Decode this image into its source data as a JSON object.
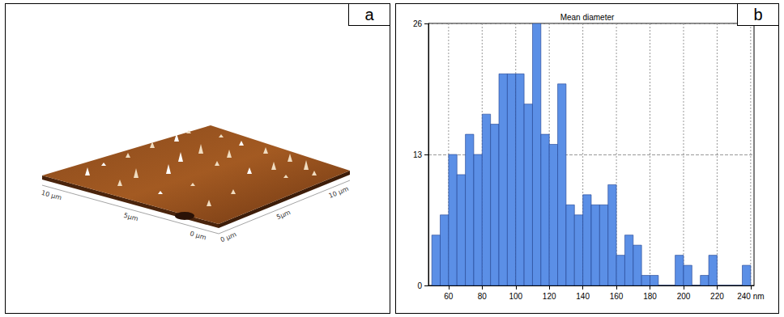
{
  "panel_a": {
    "panel_label": "a",
    "axis_labels": [
      "10 µm",
      "5µm",
      "0 µm",
      "0 µm",
      "5µm",
      "10 µm"
    ]
  },
  "chart_data": {
    "type": "histogram",
    "panel_label": "b",
    "title": "Mean diameter",
    "bins": [
      50,
      55,
      60,
      65,
      70,
      75,
      80,
      85,
      90,
      95,
      100,
      105,
      110,
      115,
      120,
      125,
      130,
      135,
      140,
      145,
      150,
      155,
      160,
      165,
      170,
      175,
      180,
      185,
      190,
      195,
      200,
      205,
      210,
      215,
      220,
      225,
      230,
      235,
      240
    ],
    "counts": [
      5,
      7,
      13,
      11,
      15,
      13,
      17,
      16,
      21,
      21,
      21,
      18,
      26,
      15,
      14,
      20,
      8,
      7,
      9,
      8,
      8,
      10,
      3,
      5,
      4,
      1,
      1,
      0,
      0,
      3,
      2,
      0,
      1,
      3,
      0,
      0,
      0,
      2
    ],
    "color": "#5b8fe6",
    "xlim": [
      48,
      242
    ],
    "xticks": [
      60,
      80,
      100,
      120,
      140,
      160,
      180,
      200,
      220,
      {
        "value": 240,
        "label": "240 nm"
      }
    ],
    "ylim": [
      0,
      26
    ],
    "yticks": [
      0,
      13,
      26
    ],
    "grid": true
  }
}
